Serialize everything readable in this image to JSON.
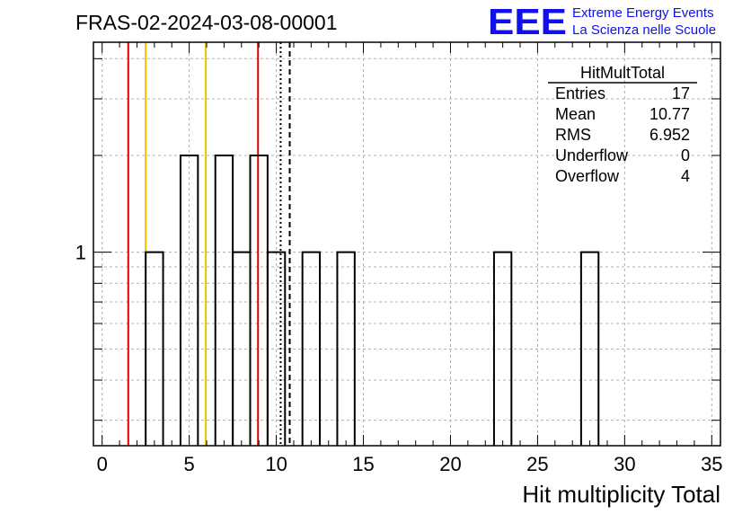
{
  "title": "FRAS-02-2024-03-08-00001",
  "logo": {
    "letters": "EEE",
    "line1": "Extreme Energy Events",
    "line2": "La Scienza nelle Scuole",
    "color": "#1010ee"
  },
  "stats": {
    "title": "HitMultTotal",
    "rows": [
      {
        "label": "Entries",
        "value": "17"
      },
      {
        "label": "Mean",
        "value": "10.77"
      },
      {
        "label": "RMS",
        "value": "6.952"
      },
      {
        "label": "Underflow",
        "value": "0"
      },
      {
        "label": "Overflow",
        "value": "4"
      }
    ]
  },
  "chart_data": {
    "type": "histogram",
    "xlabel": "Hit multiplicity Total",
    "ylabel": "",
    "xlim": [
      -0.5,
      35.5
    ],
    "ylim": [
      0.25,
      4.5
    ],
    "log_y": true,
    "grid": true,
    "bin_width": 1,
    "bins": [
      {
        "x": 3,
        "count": 1
      },
      {
        "x": 5,
        "count": 2
      },
      {
        "x": 7,
        "count": 2
      },
      {
        "x": 8,
        "count": 1
      },
      {
        "x": 9,
        "count": 2
      },
      {
        "x": 10,
        "count": 1
      },
      {
        "x": 12,
        "count": 1
      },
      {
        "x": 14,
        "count": 1
      },
      {
        "x": 23,
        "count": 1
      },
      {
        "x": 28,
        "count": 1
      }
    ],
    "x_ticks": [
      0,
      5,
      10,
      15,
      20,
      25,
      30,
      35
    ],
    "y_tick_labels": [
      {
        "value": 1,
        "label": "1"
      }
    ],
    "vertical_lines": [
      {
        "x": 1.5,
        "color": "#dd0000",
        "style": "solid"
      },
      {
        "x": 2.5,
        "color": "#f0c000",
        "style": "solid"
      },
      {
        "x": 5.95,
        "color": "#f0c000",
        "style": "solid"
      },
      {
        "x": 8.95,
        "color": "#dd0000",
        "style": "solid"
      },
      {
        "x": 10.25,
        "color": "#000000",
        "style": "dotted"
      },
      {
        "x": 10.77,
        "color": "#000000",
        "style": "dashed"
      }
    ]
  }
}
